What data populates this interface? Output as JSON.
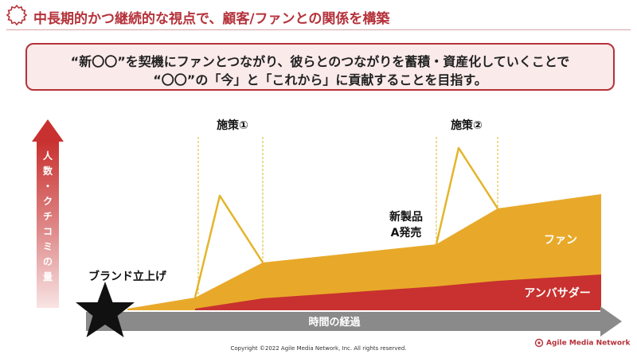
{
  "title": "中長期的かつ継続的な視点で、顧客/ファンとの関係を構築",
  "message": {
    "line1": "“新〇〇”を契機にファンとつながり、彼らとのつながりを蓄積・資産化していくことで",
    "line2": "“〇〇”の「今」と「これから」に貢献することを目指す。"
  },
  "diagram": {
    "y_axis_label": [
      "人",
      "数",
      "・",
      "ク",
      "チ",
      "コ",
      "ミ",
      "の",
      "量"
    ],
    "x_axis_label": "時間の経過",
    "start_label": "ブランド立上げ",
    "measure1_label": "施策①",
    "measure2_label": "施策②",
    "launch_label": [
      "新製品",
      "A発売"
    ],
    "fan_label": "ファン",
    "ambassador_label": "アンバサダー"
  },
  "colors": {
    "accent": "#b5323a",
    "fan": "#e8a92a",
    "ambassador": "#c8312f",
    "arrow_gray": "#8a8a8a",
    "spike": "#e3b52a"
  },
  "footer": {
    "copyright": "Copyright ©2022 Agile Media Network, Inc. All rights reserved.",
    "logo": "Agile Media Network"
  }
}
